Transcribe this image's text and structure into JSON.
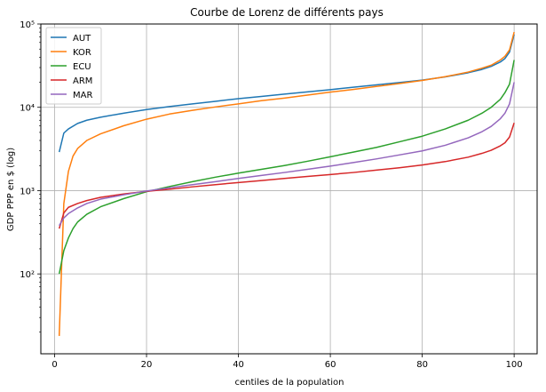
{
  "chart_data": {
    "type": "line",
    "title": "Courbe de Lorenz de différents pays",
    "xlabel": "centiles de la population",
    "ylabel": "GDP PPP en $ (log)",
    "xlim": [
      -3,
      105
    ],
    "ylim": [
      11,
      100000
    ],
    "yscale": "log",
    "grid": true,
    "legend_position": "top-left",
    "x_ticks": [
      0,
      20,
      40,
      60,
      80,
      100
    ],
    "x_tick_labels": [
      "0",
      "20",
      "40",
      "60",
      "80",
      "100"
    ],
    "y_ticks": [
      100,
      1000,
      10000,
      100000
    ],
    "y_tick_labels": [
      "10²",
      "10³",
      "10⁴",
      "10⁵"
    ],
    "series": [
      {
        "name": "AUT",
        "color": "#1f77b4",
        "points": [
          [
            1,
            2900
          ],
          [
            2,
            4900
          ],
          [
            3,
            5500
          ],
          [
            5,
            6400
          ],
          [
            7,
            7000
          ],
          [
            10,
            7600
          ],
          [
            15,
            8500
          ],
          [
            20,
            9400
          ],
          [
            25,
            10200
          ],
          [
            30,
            11000
          ],
          [
            35,
            11800
          ],
          [
            40,
            12700
          ],
          [
            45,
            13500
          ],
          [
            50,
            14400
          ],
          [
            55,
            15300
          ],
          [
            60,
            16300
          ],
          [
            65,
            17400
          ],
          [
            70,
            18600
          ],
          [
            75,
            19800
          ],
          [
            80,
            21200
          ],
          [
            85,
            23200
          ],
          [
            90,
            26000
          ],
          [
            93,
            28500
          ],
          [
            95,
            31000
          ],
          [
            97,
            35000
          ],
          [
            98,
            38500
          ],
          [
            99,
            46000
          ],
          [
            100,
            75000
          ]
        ]
      },
      {
        "name": "KOR",
        "color": "#ff7f0e",
        "points": [
          [
            1,
            18
          ],
          [
            2,
            700
          ],
          [
            3,
            1700
          ],
          [
            4,
            2600
          ],
          [
            5,
            3200
          ],
          [
            7,
            4000
          ],
          [
            10,
            4800
          ],
          [
            15,
            6000
          ],
          [
            20,
            7200
          ],
          [
            25,
            8300
          ],
          [
            30,
            9200
          ],
          [
            35,
            10100
          ],
          [
            40,
            11000
          ],
          [
            45,
            12000
          ],
          [
            50,
            12900
          ],
          [
            55,
            14000
          ],
          [
            60,
            15200
          ],
          [
            65,
            16400
          ],
          [
            70,
            17800
          ],
          [
            75,
            19300
          ],
          [
            80,
            21000
          ],
          [
            85,
            23300
          ],
          [
            90,
            26500
          ],
          [
            93,
            29500
          ],
          [
            95,
            32000
          ],
          [
            97,
            37000
          ],
          [
            98,
            41000
          ],
          [
            99,
            49000
          ],
          [
            100,
            80000
          ]
        ]
      },
      {
        "name": "ECU",
        "color": "#2ca02c",
        "points": [
          [
            1,
            100
          ],
          [
            2,
            190
          ],
          [
            3,
            270
          ],
          [
            4,
            350
          ],
          [
            5,
            420
          ],
          [
            7,
            520
          ],
          [
            10,
            640
          ],
          [
            15,
            800
          ],
          [
            20,
            970
          ],
          [
            25,
            1120
          ],
          [
            30,
            1280
          ],
          [
            35,
            1450
          ],
          [
            40,
            1620
          ],
          [
            45,
            1800
          ],
          [
            50,
            2000
          ],
          [
            55,
            2250
          ],
          [
            60,
            2550
          ],
          [
            65,
            2900
          ],
          [
            70,
            3300
          ],
          [
            75,
            3850
          ],
          [
            80,
            4500
          ],
          [
            85,
            5500
          ],
          [
            90,
            7000
          ],
          [
            93,
            8500
          ],
          [
            95,
            10000
          ],
          [
            97,
            12500
          ],
          [
            98,
            15000
          ],
          [
            99,
            19000
          ],
          [
            100,
            37000
          ]
        ]
      },
      {
        "name": "ARM",
        "color": "#d62728",
        "points": [
          [
            1,
            350
          ],
          [
            2,
            540
          ],
          [
            3,
            630
          ],
          [
            5,
            700
          ],
          [
            7,
            760
          ],
          [
            10,
            830
          ],
          [
            15,
            910
          ],
          [
            20,
            980
          ],
          [
            25,
            1040
          ],
          [
            30,
            1110
          ],
          [
            35,
            1180
          ],
          [
            40,
            1250
          ],
          [
            45,
            1320
          ],
          [
            50,
            1400
          ],
          [
            55,
            1480
          ],
          [
            60,
            1560
          ],
          [
            65,
            1650
          ],
          [
            70,
            1760
          ],
          [
            75,
            1880
          ],
          [
            80,
            2030
          ],
          [
            85,
            2230
          ],
          [
            90,
            2520
          ],
          [
            93,
            2800
          ],
          [
            95,
            3050
          ],
          [
            97,
            3450
          ],
          [
            98,
            3750
          ],
          [
            99,
            4400
          ],
          [
            100,
            6500
          ]
        ]
      },
      {
        "name": "MAR",
        "color": "#9467bd",
        "points": [
          [
            1,
            380
          ],
          [
            2,
            470
          ],
          [
            3,
            530
          ],
          [
            5,
            620
          ],
          [
            7,
            700
          ],
          [
            10,
            790
          ],
          [
            15,
            890
          ],
          [
            20,
            990
          ],
          [
            25,
            1080
          ],
          [
            30,
            1180
          ],
          [
            35,
            1280
          ],
          [
            40,
            1400
          ],
          [
            45,
            1520
          ],
          [
            50,
            1650
          ],
          [
            55,
            1800
          ],
          [
            60,
            1970
          ],
          [
            65,
            2170
          ],
          [
            70,
            2400
          ],
          [
            75,
            2680
          ],
          [
            80,
            3000
          ],
          [
            85,
            3500
          ],
          [
            90,
            4300
          ],
          [
            93,
            5100
          ],
          [
            95,
            5900
          ],
          [
            97,
            7300
          ],
          [
            98,
            8500
          ],
          [
            99,
            11000
          ],
          [
            100,
            20000
          ]
        ]
      }
    ]
  }
}
